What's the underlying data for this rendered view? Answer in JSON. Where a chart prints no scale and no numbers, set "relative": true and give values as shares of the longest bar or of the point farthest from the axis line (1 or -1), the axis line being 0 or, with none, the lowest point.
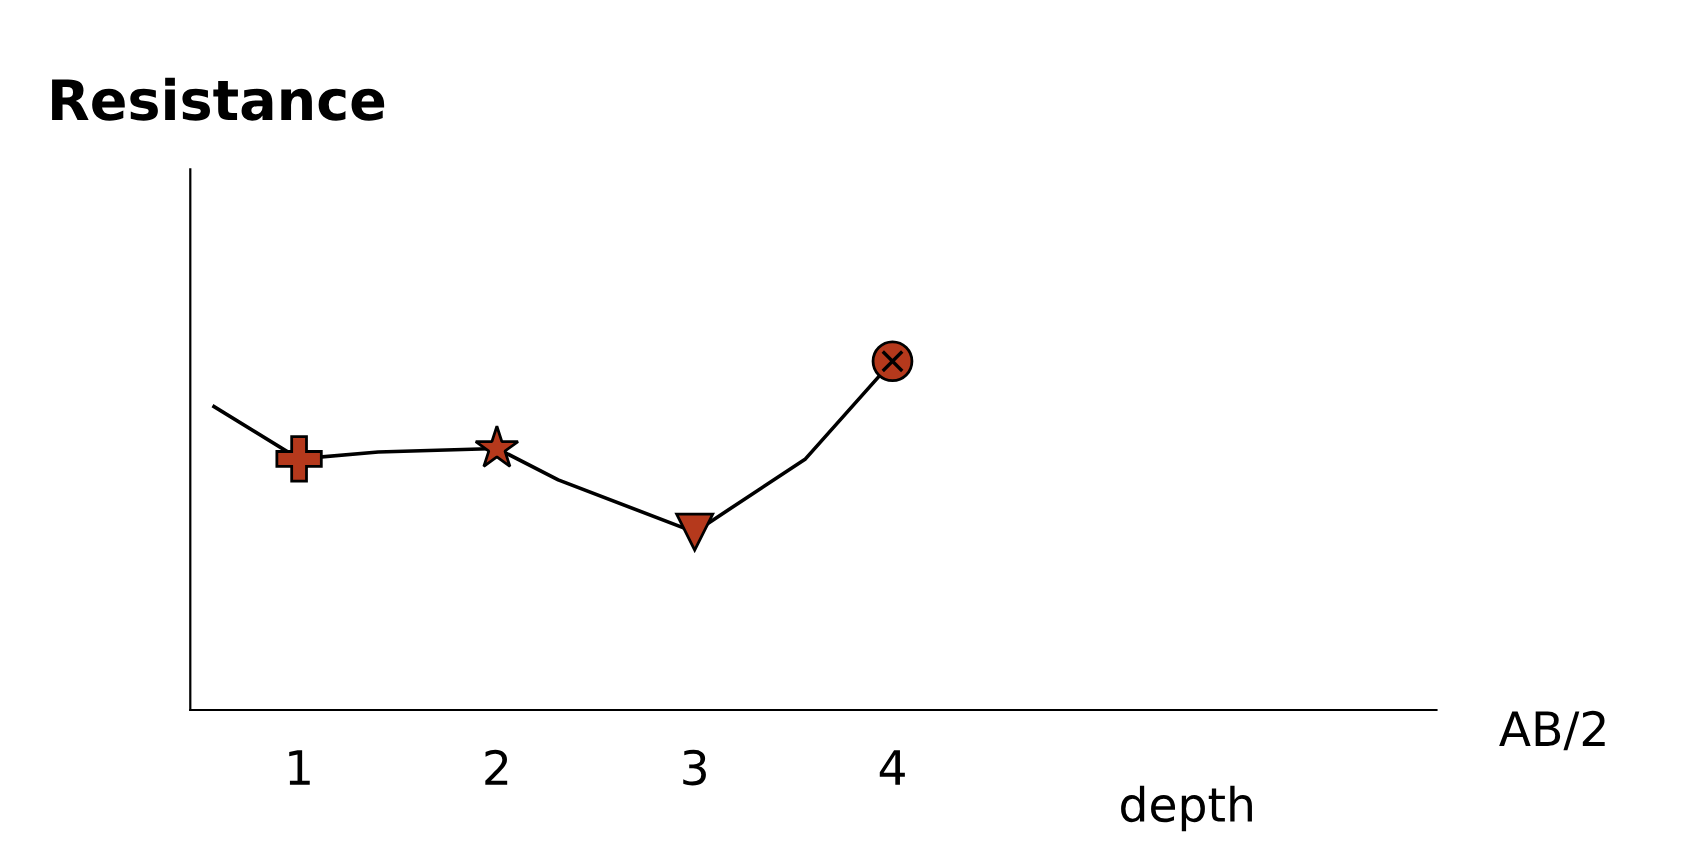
{
  "chart_data": {
    "type": "line",
    "relative": true,
    "ylabel": "Resistance",
    "xlabel": "AB/2",
    "annotations": [
      "depth"
    ],
    "xlim": [
      0.45,
      6.75
    ],
    "xticks": [
      1,
      2,
      3,
      4
    ],
    "grid": false,
    "series": [
      {
        "color": "#000000",
        "marker": "none",
        "line_style": "solid",
        "x": [
          0.57,
          1,
          1.4,
          2,
          2.31,
          3,
          3.56,
          4
        ],
        "values": [
          0.87,
          0.72,
          0.74,
          0.75,
          0.66,
          0.51,
          0.72,
          1.0
        ]
      },
      {
        "type": "scatter",
        "color": "#b5391c",
        "marker": "cross",
        "x": [
          1
        ],
        "values": [
          0.72
        ]
      },
      {
        "type": "scatter",
        "color": "#b5391c",
        "marker": "star",
        "x": [
          2
        ],
        "values": [
          0.75
        ]
      },
      {
        "type": "scatter",
        "color": "#b5391c",
        "marker": "triangle",
        "x": [
          3
        ],
        "values": [
          0.51
        ]
      },
      {
        "type": "scatter",
        "color": "#b5391c",
        "marker": "circle",
        "x": [
          4
        ],
        "values": [
          1.0
        ]
      }
    ]
  }
}
